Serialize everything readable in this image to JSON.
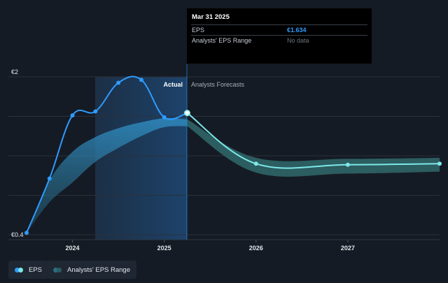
{
  "colors": {
    "eps_actual": "#2f9bff",
    "eps_forecast": "#7de8e8",
    "range_band": "#2a6f87",
    "forecast_band": "#2c5d60",
    "background": "#151b24",
    "actual_region": "#1e4b7a"
  },
  "tooltip": {
    "date": "Mar 31 2025",
    "rows": [
      {
        "label": "EPS",
        "value": "€1.634"
      },
      {
        "label": "Analysts' EPS Range",
        "value": "No data"
      }
    ]
  },
  "region_labels": {
    "actual": "Actual",
    "forecast": "Analysts Forecasts"
  },
  "legend": {
    "items": [
      {
        "label": "EPS",
        "icon": "eps-dot-icon"
      },
      {
        "label": "Analysts' EPS Range",
        "icon": "range-dot-icon"
      }
    ]
  },
  "chart_data": {
    "type": "line",
    "y_tick_labels": [
      "€2",
      "€0.4"
    ],
    "x_tick_labels": [
      "2024",
      "2025",
      "2026",
      "2027"
    ],
    "x_ticks": [
      2024.0,
      2025.0,
      2026.0,
      2027.0
    ],
    "xlim": [
      2023.5,
      2028.0
    ],
    "ylim": [
      0.4,
      2.0
    ],
    "divider_x": 2025.25,
    "series": [
      {
        "name": "EPS",
        "role": "actual",
        "x": [
          2023.5,
          2023.75,
          2024.0,
          2024.25,
          2024.5,
          2024.75,
          2025.0,
          2025.25
        ],
        "values": [
          0.42,
          0.97,
          1.61,
          1.65,
          1.94,
          1.97,
          1.59,
          1.634
        ]
      },
      {
        "name": "EPS",
        "role": "forecast",
        "x": [
          2025.25,
          2026.0,
          2027.0,
          2028.0
        ],
        "values": [
          1.634,
          1.12,
          1.11,
          1.12
        ]
      },
      {
        "name": "Analysts' EPS Range",
        "role": "range",
        "x": [
          2023.5,
          2023.75,
          2024.0,
          2024.25,
          2024.5,
          2024.75,
          2025.0,
          2025.25,
          2026.0,
          2027.0,
          2028.0
        ],
        "high": [
          0.42,
          0.95,
          1.24,
          1.39,
          1.48,
          1.54,
          1.58,
          1.57,
          1.18,
          1.17,
          1.18
        ],
        "low": [
          0.42,
          0.73,
          0.93,
          1.14,
          1.28,
          1.4,
          1.49,
          1.5,
          1.03,
          1.02,
          1.04
        ]
      }
    ],
    "grid": true
  }
}
